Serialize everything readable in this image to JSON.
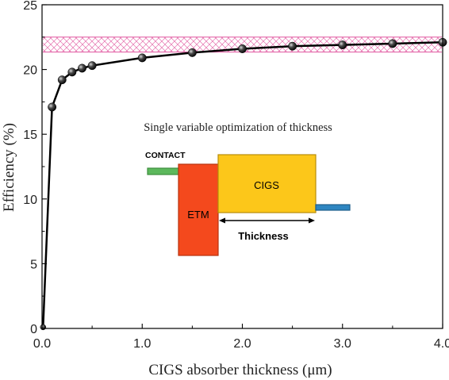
{
  "chart_data": {
    "type": "line",
    "xlabel": "CIGS absorber thickness (μm)",
    "ylabel": "Efficiency (%)",
    "xlim": [
      0,
      4
    ],
    "ylim": [
      0,
      25
    ],
    "x_ticks": [
      "0.0",
      "1.0",
      "2.0",
      "3.0",
      "4.0"
    ],
    "y_ticks": [
      "0",
      "5",
      "10",
      "15",
      "20",
      "25"
    ],
    "grid": false,
    "legend": "none",
    "series": [
      {
        "x": [
          0.01,
          0.1,
          0.2,
          0.3,
          0.4,
          0.5,
          1.0,
          1.5,
          2.0,
          2.5,
          3.0,
          3.5,
          4.0
        ],
        "values": [
          0.1,
          17.1,
          19.2,
          19.8,
          20.1,
          20.3,
          20.9,
          21.3,
          21.6,
          21.8,
          21.9,
          22.0,
          22.1
        ]
      }
    ],
    "band": {
      "y_range": [
        21.35,
        22.5
      ],
      "color": "#e0569f"
    },
    "annotation": "Single variable optimization of  thickness",
    "inset": {
      "contact_label": "CONTACT",
      "etm_label": "ETM",
      "cigs_label": "CIGS",
      "thickness_label": "Thickness",
      "colors": {
        "contact": "#5cb85c",
        "etm": "#f4491d",
        "cigs": "#fcc71a",
        "back": "#2e86c1"
      }
    },
    "colors": {
      "line": "#000000",
      "marker": "#2a2a2a"
    }
  }
}
